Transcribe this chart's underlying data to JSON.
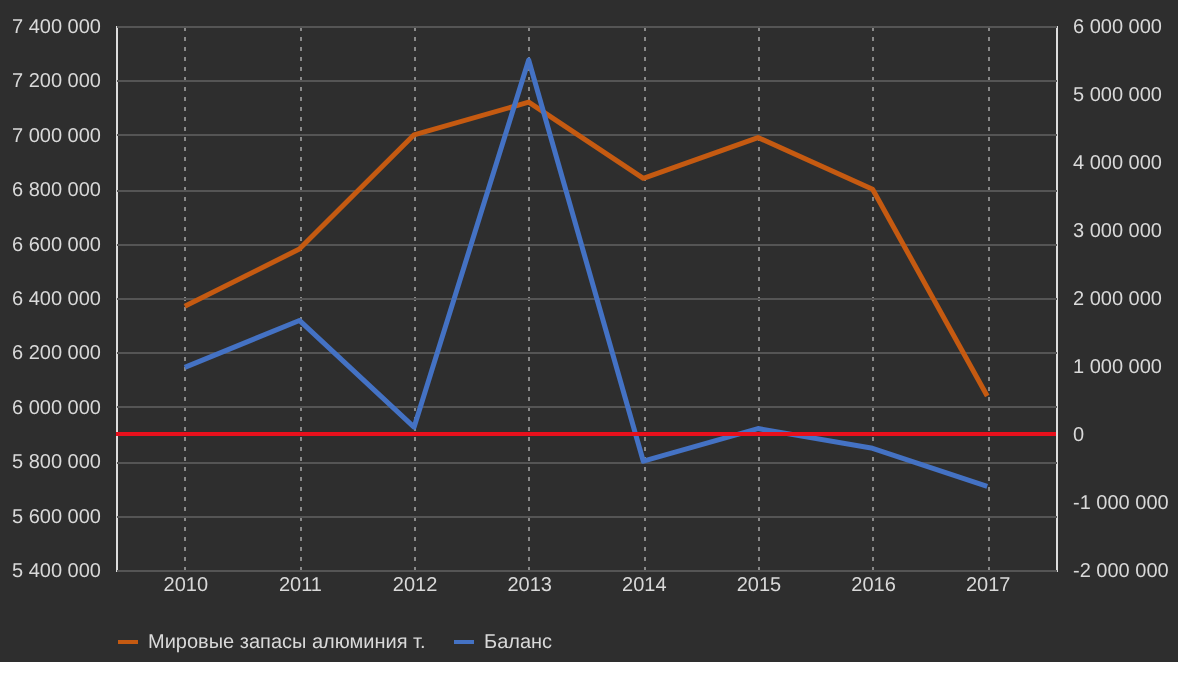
{
  "chart_data": {
    "type": "line",
    "categories": [
      "2010",
      "2011",
      "2012",
      "2013",
      "2014",
      "2015",
      "2016",
      "2017"
    ],
    "series": [
      {
        "name": "Мировые запасы алюминия т.",
        "color": "#c55a11",
        "values": [
          6370000,
          6580000,
          7000000,
          7120000,
          6840000,
          6990000,
          6800000,
          6040000
        ]
      },
      {
        "name": "Баланс",
        "color": "#4472c4",
        "axis": "y2",
        "values": [
          980000,
          1670000,
          100000,
          5500000,
          -400000,
          80000,
          -210000,
          -770000
        ]
      }
    ],
    "ylim": [
      5400000,
      7400000
    ],
    "yticks": [
      {
        "value": 5400000,
        "label": "5 400 000"
      },
      {
        "value": 5600000,
        "label": "5 600 000"
      },
      {
        "value": 5800000,
        "label": "5 800 000"
      },
      {
        "value": 6000000,
        "label": "6 000 000"
      },
      {
        "value": 6200000,
        "label": "6 200 000"
      },
      {
        "value": 6400000,
        "label": "6 400 000"
      },
      {
        "value": 6600000,
        "label": "6 600 000"
      },
      {
        "value": 6800000,
        "label": "6 800 000"
      },
      {
        "value": 7000000,
        "label": "7 000 000"
      },
      {
        "value": 7200000,
        "label": "7 200 000"
      },
      {
        "value": 7400000,
        "label": "7 400 000"
      }
    ],
    "y2lim": [
      -2000000,
      6000000
    ],
    "y2ticks": [
      {
        "value": -2000000,
        "label": "-2 000 000"
      },
      {
        "value": -1000000,
        "label": "-1 000 000"
      },
      0,
      {
        "value": 1000000,
        "label": "1 000 000"
      },
      {
        "value": 2000000,
        "label": "2 000 000"
      },
      {
        "value": 3000000,
        "label": "3 000 000"
      },
      {
        "value": 4000000,
        "label": "4 000 000"
      },
      {
        "value": 5000000,
        "label": "5 000 000"
      },
      {
        "value": 6000000,
        "label": "6 000 000"
      }
    ],
    "ref_lines": [
      {
        "axis": "y2",
        "value": 0,
        "color": "#e8101c",
        "line_style": "solid"
      }
    ],
    "grid": true,
    "legend": "bottom",
    "marker": "none",
    "line_style": "solid"
  }
}
